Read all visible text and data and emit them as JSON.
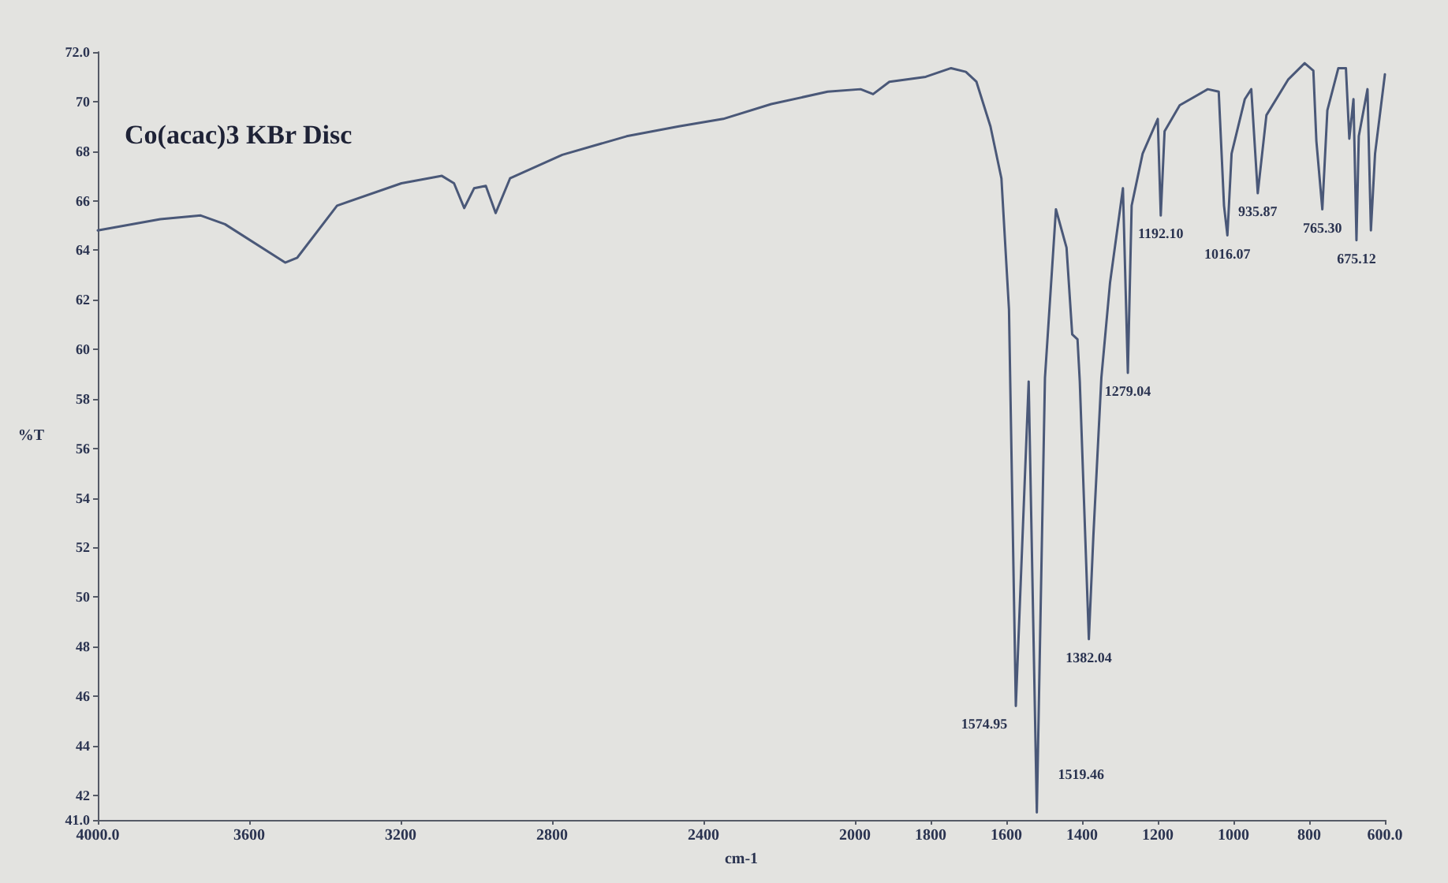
{
  "chart_data": {
    "type": "line",
    "title": "Co(acac)3 KBr Disc",
    "xlabel": "cm-1",
    "ylabel": "%T",
    "color": "#4a5878",
    "x": [
      4000,
      3835,
      3728,
      3664,
      3505,
      3473,
      3368,
      3198,
      3091,
      3059,
      3032,
      3006,
      2975,
      2949,
      2911,
      2773,
      2603,
      2465,
      2348,
      2221,
      2072,
      1985,
      1952,
      1909,
      1813,
      1746,
      1707,
      1679,
      1642,
      1613,
      1593,
      1574.95,
      1541,
      1519.46,
      1498,
      1469,
      1441,
      1426,
      1412,
      1406,
      1382.04,
      1370,
      1349,
      1326,
      1292,
      1279.04,
      1269,
      1240,
      1200,
      1192.1,
      1182,
      1142,
      1068,
      1039,
      1025,
      1016.07,
      1005,
      970,
      953,
      935.87,
      913,
      855,
      812,
      789,
      781,
      765.3,
      752,
      723,
      703,
      694,
      683,
      675.12,
      669,
      646,
      637,
      626,
      600
    ],
    "values": [
      64.8,
      65.25,
      65.4,
      65.05,
      63.5,
      63.7,
      65.8,
      66.7,
      67.0,
      66.7,
      65.7,
      66.5,
      66.6,
      65.5,
      66.9,
      67.85,
      68.6,
      69.0,
      69.3,
      69.9,
      70.4,
      70.5,
      70.3,
      70.8,
      71.0,
      71.35,
      71.2,
      70.8,
      69.0,
      66.9,
      61.6,
      45.6,
      58.7,
      41.3,
      58.85,
      65.65,
      64.1,
      60.6,
      60.4,
      58.7,
      48.3,
      52.5,
      58.85,
      62.7,
      66.5,
      59.05,
      65.8,
      67.9,
      69.3,
      65.4,
      68.8,
      69.85,
      70.5,
      70.4,
      65.8,
      64.6,
      67.9,
      70.1,
      70.5,
      66.3,
      69.45,
      70.9,
      71.55,
      71.25,
      68.4,
      65.65,
      69.65,
      71.35,
      71.35,
      68.5,
      70.1,
      64.4,
      68.6,
      70.5,
      64.8,
      67.9,
      71.1
    ],
    "xlim": [
      4000,
      600
    ],
    "ylim": [
      41,
      72
    ],
    "xticks": [
      {
        "value": 4000,
        "label": "4000.0"
      },
      3600,
      3200,
      2800,
      2400,
      2000,
      1800,
      1600,
      1400,
      1200,
      1000,
      800,
      {
        "value": 600,
        "label": "600.0"
      }
    ],
    "yticks": [
      {
        "value": 41,
        "label": "41.0"
      },
      42,
      44,
      46,
      48,
      50,
      52,
      54,
      56,
      58,
      60,
      62,
      64,
      66,
      68,
      70,
      {
        "value": 72,
        "label": "72.0"
      }
    ],
    "annotations": [
      {
        "text": "1574.95",
        "x": 1574.95,
        "y": 45.6
      },
      {
        "text": "1519.46",
        "x": 1519.46,
        "y": 41.3
      },
      {
        "text": "1382.04",
        "x": 1382.04,
        "y": 48.3
      },
      {
        "text": "1279.04",
        "x": 1279.04,
        "y": 59.05
      },
      {
        "text": "1192.10",
        "x": 1192.1,
        "y": 65.4
      },
      {
        "text": "1016.07",
        "x": 1016.07,
        "y": 64.6
      },
      {
        "text": "935.87",
        "x": 935.87,
        "y": 66.3
      },
      {
        "text": "765.30",
        "x": 765.3,
        "y": 65.65
      },
      {
        "text": "675.12",
        "x": 675.12,
        "y": 64.4
      }
    ]
  }
}
